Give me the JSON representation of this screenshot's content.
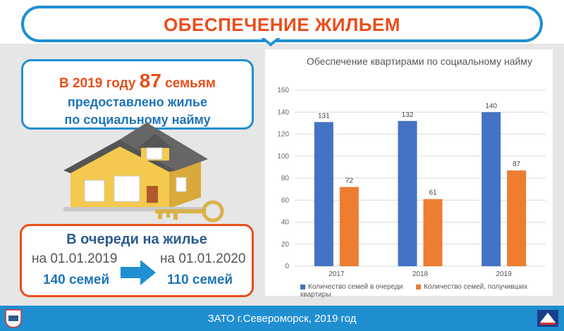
{
  "header": {
    "title": "ОБЕСПЕЧЕНИЕ ЖИЛЬЕМ"
  },
  "info": {
    "prefix": "В 2019 году ",
    "number": "87",
    "suffix": " семьям",
    "line2": "предоставлено жилье",
    "line3": "по социальному найму"
  },
  "queue": {
    "title": "В очереди на жилье",
    "date_from": "на 01.01.2019",
    "count_from": "140 семей",
    "date_to": "на 01.01.2020",
    "count_to": "110 семей"
  },
  "footer": {
    "text": "ЗАТО г.Североморск, 2019 год"
  },
  "colors": {
    "accent_blue": "#1f8fd1",
    "accent_orange": "#e84e1b",
    "series1": "#4472c4",
    "series2": "#ed7d31"
  },
  "chart_data": {
    "type": "bar",
    "title": "Обеспечение квартирами по социальному найму",
    "categories": [
      "2017",
      "2018",
      "2019"
    ],
    "series": [
      {
        "name": "Количество семей в очереди",
        "values": [
          131,
          132,
          140
        ]
      },
      {
        "name": "Количество семей, получивших квартиры",
        "values": [
          72,
          61,
          87
        ]
      }
    ],
    "ylim": [
      0,
      160
    ],
    "yticks": [
      0,
      20,
      40,
      60,
      80,
      100,
      120,
      140,
      160
    ],
    "grid": true,
    "legend": "bottom"
  }
}
